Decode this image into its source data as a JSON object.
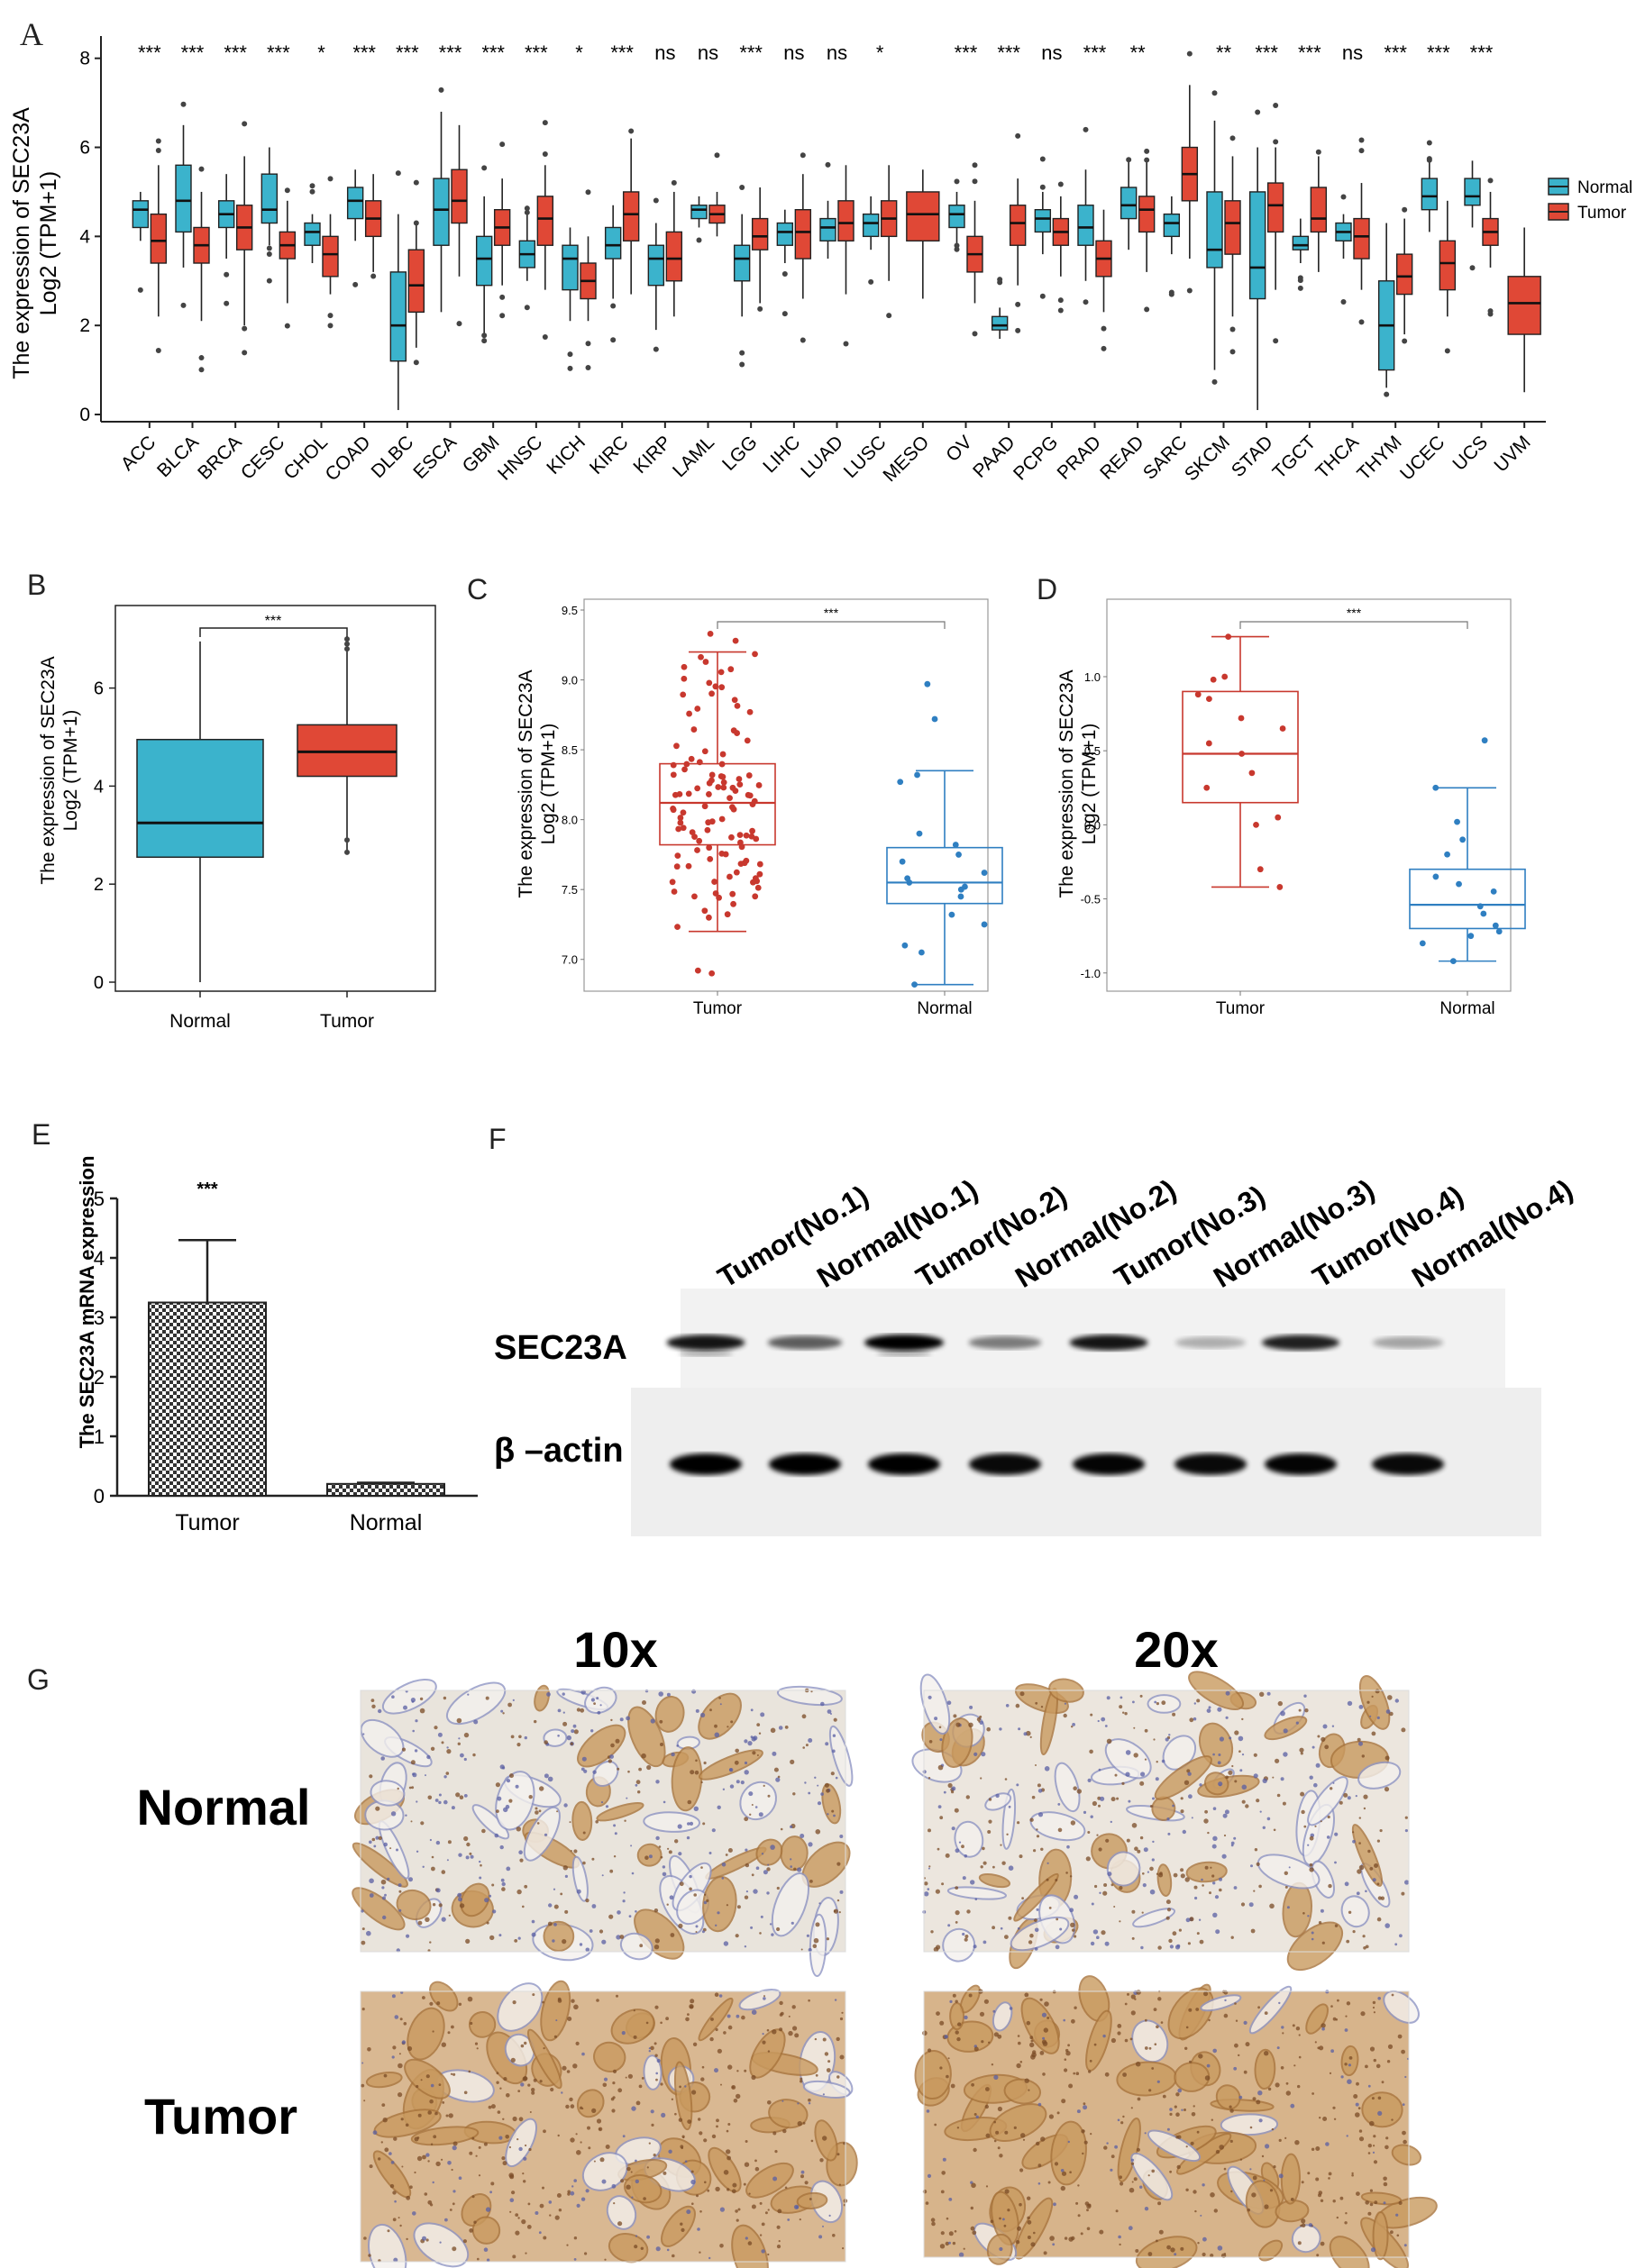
{
  "panel_letters": {
    "a": "A",
    "b": "B",
    "c": "C",
    "d": "D",
    "e": "E",
    "f": "F",
    "g": "G"
  },
  "colors": {
    "normal": "#3bb3cc",
    "tumor": "#e04836",
    "scatter_tumor": "#c8382e",
    "scatter_normal": "#2f7fc1"
  },
  "chart_data": [
    {
      "panel": "A",
      "type": "box",
      "ylabel_line1": "The expression of SEC23A",
      "ylabel_line2": "Log2 (TPM+1)",
      "ylim": [
        0,
        8.5
      ],
      "yticks": [
        0,
        2,
        4,
        6,
        8
      ],
      "legend": [
        "Normal",
        "Tumor"
      ],
      "categories": [
        "ACC",
        "BLCA",
        "BRCA",
        "CESC",
        "CHOL",
        "COAD",
        "DLBC",
        "ESCA",
        "GBM",
        "HNSC",
        "KICH",
        "KIRC",
        "KIRP",
        "LAML",
        "LGG",
        "LIHC",
        "LUAD",
        "LUSC",
        "MESO",
        "OV",
        "PAAD",
        "PCPG",
        "PRAD",
        "READ",
        "SARC",
        "SKCM",
        "STAD",
        "TGCT",
        "THCA",
        "THYM",
        "UCEC",
        "UCS",
        "UVM"
      ],
      "significance": [
        "***",
        "***",
        "***",
        "***",
        "*",
        "***",
        "***",
        "***",
        "***",
        "***",
        "*",
        "***",
        "ns",
        "ns",
        "***",
        "ns",
        "ns",
        "*",
        "",
        "***",
        "***",
        "ns",
        "***",
        "**",
        "",
        "**",
        "***",
        "***",
        "ns",
        "***",
        "***",
        "***",
        ""
      ],
      "normal": [
        [
          3.9,
          4.2,
          4.6,
          4.8,
          5.0
        ],
        [
          3.3,
          4.1,
          4.8,
          5.6,
          6.5
        ],
        [
          3.5,
          4.2,
          4.5,
          4.8,
          5.4
        ],
        [
          3.8,
          4.3,
          4.6,
          5.4,
          6.0
        ],
        [
          3.4,
          3.8,
          4.1,
          4.3,
          4.5
        ],
        [
          3.9,
          4.4,
          4.8,
          5.1,
          5.5
        ],
        [
          0.1,
          1.2,
          2.0,
          3.2,
          4.5
        ],
        [
          2.3,
          3.8,
          4.6,
          5.3,
          6.8
        ],
        [
          1.8,
          2.9,
          3.5,
          4.0,
          4.9
        ],
        [
          3.0,
          3.3,
          3.6,
          3.9,
          4.5
        ],
        [
          2.1,
          2.8,
          3.5,
          3.8,
          4.2
        ],
        [
          2.6,
          3.5,
          3.8,
          4.2,
          4.7
        ],
        [
          1.9,
          2.9,
          3.5,
          3.8,
          4.3
        ],
        [
          4.2,
          4.4,
          4.6,
          4.7,
          4.9
        ],
        [
          2.2,
          3.0,
          3.5,
          3.8,
          4.5
        ],
        [
          3.4,
          3.8,
          4.1,
          4.3,
          4.6
        ],
        [
          3.5,
          3.9,
          4.2,
          4.4,
          4.8
        ],
        [
          3.7,
          4.0,
          4.3,
          4.5,
          4.9
        ],
        null,
        [
          3.8,
          4.2,
          4.5,
          4.7,
          5.0
        ],
        [
          1.7,
          1.9,
          2.0,
          2.2,
          2.4
        ],
        [
          3.6,
          4.1,
          4.4,
          4.6,
          5.0
        ],
        [
          3.0,
          3.8,
          4.2,
          4.7,
          5.5
        ],
        [
          3.7,
          4.4,
          4.7,
          5.1,
          5.7
        ],
        [
          3.6,
          4.0,
          4.3,
          4.5,
          4.9
        ],
        [
          1.0,
          3.3,
          3.7,
          5.0,
          6.6
        ],
        [
          0.1,
          2.6,
          3.3,
          5.0,
          6.0
        ],
        [
          3.4,
          3.7,
          3.8,
          4.0,
          4.4
        ],
        [
          3.5,
          3.9,
          4.1,
          4.3,
          4.5
        ],
        [
          0.6,
          1.0,
          2.0,
          3.0,
          4.3
        ],
        [
          4.1,
          4.6,
          4.9,
          5.3,
          5.7
        ],
        [
          4.2,
          4.7,
          4.9,
          5.3,
          5.7
        ],
        null
      ],
      "tumor": [
        [
          2.2,
          3.4,
          3.9,
          4.5,
          5.6
        ],
        [
          2.1,
          3.4,
          3.8,
          4.2,
          5.0
        ],
        [
          2.0,
          3.7,
          4.2,
          4.7,
          5.8
        ],
        [
          2.5,
          3.5,
          3.8,
          4.1,
          4.8
        ],
        [
          2.7,
          3.1,
          3.6,
          4.0,
          4.5
        ],
        [
          3.2,
          4.0,
          4.4,
          4.8,
          5.4
        ],
        [
          1.5,
          2.3,
          2.9,
          3.7,
          4.3
        ],
        [
          3.1,
          4.3,
          4.8,
          5.5,
          6.5
        ],
        [
          2.9,
          3.8,
          4.2,
          4.6,
          5.3
        ],
        [
          2.8,
          3.8,
          4.4,
          4.9,
          5.6
        ],
        [
          2.1,
          2.6,
          3.0,
          3.4,
          4.0
        ],
        [
          2.7,
          3.9,
          4.5,
          5.0,
          6.2
        ],
        [
          2.2,
          3.0,
          3.5,
          4.1,
          5.0
        ],
        [
          4.0,
          4.3,
          4.5,
          4.7,
          5.0
        ],
        [
          2.5,
          3.7,
          4.0,
          4.4,
          5.1
        ],
        [
          2.6,
          3.5,
          4.1,
          4.6,
          5.4
        ],
        [
          2.7,
          3.9,
          4.3,
          4.8,
          5.6
        ],
        [
          3.0,
          4.0,
          4.4,
          4.8,
          5.6
        ],
        [
          2.6,
          3.9,
          4.5,
          5.0,
          5.5
        ],
        [
          2.5,
          3.2,
          3.6,
          4.0,
          4.8
        ],
        [
          2.9,
          3.8,
          4.3,
          4.7,
          5.3
        ],
        [
          3.1,
          3.8,
          4.1,
          4.4,
          4.9
        ],
        [
          2.3,
          3.1,
          3.5,
          3.9,
          4.6
        ],
        [
          3.2,
          4.1,
          4.6,
          4.9,
          5.7
        ],
        [
          3.5,
          4.8,
          5.4,
          6.0,
          7.4
        ],
        [
          2.2,
          3.6,
          4.3,
          4.8,
          5.8
        ],
        [
          2.8,
          4.1,
          4.7,
          5.2,
          6.0
        ],
        [
          3.2,
          4.1,
          4.4,
          5.1,
          5.8
        ],
        [
          2.8,
          3.5,
          4.0,
          4.4,
          5.2
        ],
        [
          1.8,
          2.7,
          3.1,
          3.6,
          4.4
        ],
        [
          2.2,
          2.8,
          3.4,
          3.9,
          4.8
        ],
        [
          3.3,
          3.8,
          4.1,
          4.4,
          5.0
        ],
        [
          0.5,
          1.8,
          2.5,
          3.1,
          4.2
        ]
      ]
    },
    {
      "panel": "B",
      "type": "box",
      "ylabel_line1": "The expression of SEC23A",
      "ylabel_line2": "Log2 (TPM+1)",
      "categories": [
        "Normal",
        "Tumor"
      ],
      "ylim": [
        0,
        7.5
      ],
      "yticks": [
        0,
        2,
        4,
        6
      ],
      "significance": "***",
      "boxes": [
        [
          0.0,
          2.55,
          3.25,
          4.95,
          6.95
        ],
        [
          2.65,
          4.2,
          4.7,
          5.25,
          7.0
        ]
      ]
    },
    {
      "panel": "C",
      "type": "box-jitter",
      "ylabel_line1": "The expression of SEC23A",
      "ylabel_line2": "Log2 (TPM+1)",
      "categories": [
        "Tumor",
        "Normal"
      ],
      "ylim": [
        6.85,
        9.5
      ],
      "yticks": [
        7.0,
        7.5,
        8.0,
        8.5,
        9.0,
        9.5
      ],
      "ytick_labels": [
        "7.0",
        "7.5",
        "8.0",
        "8.5",
        "9.0",
        "9.5"
      ],
      "significance": "***",
      "boxes": [
        [
          7.2,
          7.82,
          8.12,
          8.4,
          9.2
        ],
        [
          6.82,
          7.4,
          7.55,
          7.8,
          8.35
        ]
      ],
      "normal_points": [
        8.97,
        8.72,
        8.32,
        8.27,
        7.9,
        7.82,
        7.75,
        7.7,
        7.62,
        7.58,
        7.55,
        7.52,
        7.5,
        7.45,
        7.32,
        7.25,
        7.1,
        7.05,
        6.82
      ]
    },
    {
      "panel": "D",
      "type": "box-jitter",
      "ylabel_line1": "The expression of SEC23A",
      "ylabel_line2": "Log2 (TPM+1)",
      "categories": [
        "Tumor",
        "Normal"
      ],
      "ylim": [
        -1.05,
        1.45
      ],
      "yticks": [
        -1.0,
        -0.5,
        0.0,
        0.5,
        1.0
      ],
      "ytick_labels": [
        "-1.0",
        "-0.5",
        "0.0",
        "0.5",
        "1.0"
      ],
      "significance": "***",
      "boxes": [
        [
          -0.42,
          0.15,
          0.48,
          0.9,
          1.27
        ],
        [
          -0.92,
          -0.7,
          -0.54,
          -0.3,
          0.25
        ]
      ],
      "tumor_points": [
        1.27,
        1.0,
        0.98,
        0.88,
        0.85,
        0.72,
        0.65,
        0.55,
        0.48,
        0.35,
        0.25,
        0.05,
        0.0,
        -0.3,
        -0.42
      ],
      "normal_points": [
        0.57,
        0.25,
        0.02,
        -0.1,
        -0.2,
        -0.35,
        -0.4,
        -0.45,
        -0.55,
        -0.6,
        -0.68,
        -0.72,
        -0.75,
        -0.8,
        -0.92
      ]
    },
    {
      "panel": "E",
      "type": "bar",
      "ylabel": "The SEC23A mRNA expression",
      "categories": [
        "Tumor",
        "Normal"
      ],
      "values": [
        3.25,
        0.2
      ],
      "errors": [
        1.05,
        0.02
      ],
      "ylim": [
        0,
        5
      ],
      "yticks": [
        0,
        1,
        2,
        3,
        4,
        5
      ],
      "significance": "***"
    }
  ],
  "western_blot": {
    "lanes": [
      "Tumor(No.1)",
      "Normal(No.1)",
      "Tumor(No.2)",
      "Normal(No.2)",
      "Tumor(No.3)",
      "Normal(No.3)",
      "Tumor(No.4)",
      "Normal(No.4)"
    ],
    "rows": [
      "SEC23A",
      "β –actin"
    ],
    "sec23a_intensity": [
      0.9,
      0.55,
      1.0,
      0.4,
      0.9,
      0.15,
      0.85,
      0.2
    ],
    "actin_intensity": [
      1.0,
      1.0,
      1.0,
      0.9,
      0.95,
      0.9,
      0.95,
      0.9
    ]
  },
  "histology": {
    "columns": [
      "10x",
      "20x"
    ],
    "rows": [
      "Normal",
      "Tumor"
    ]
  }
}
